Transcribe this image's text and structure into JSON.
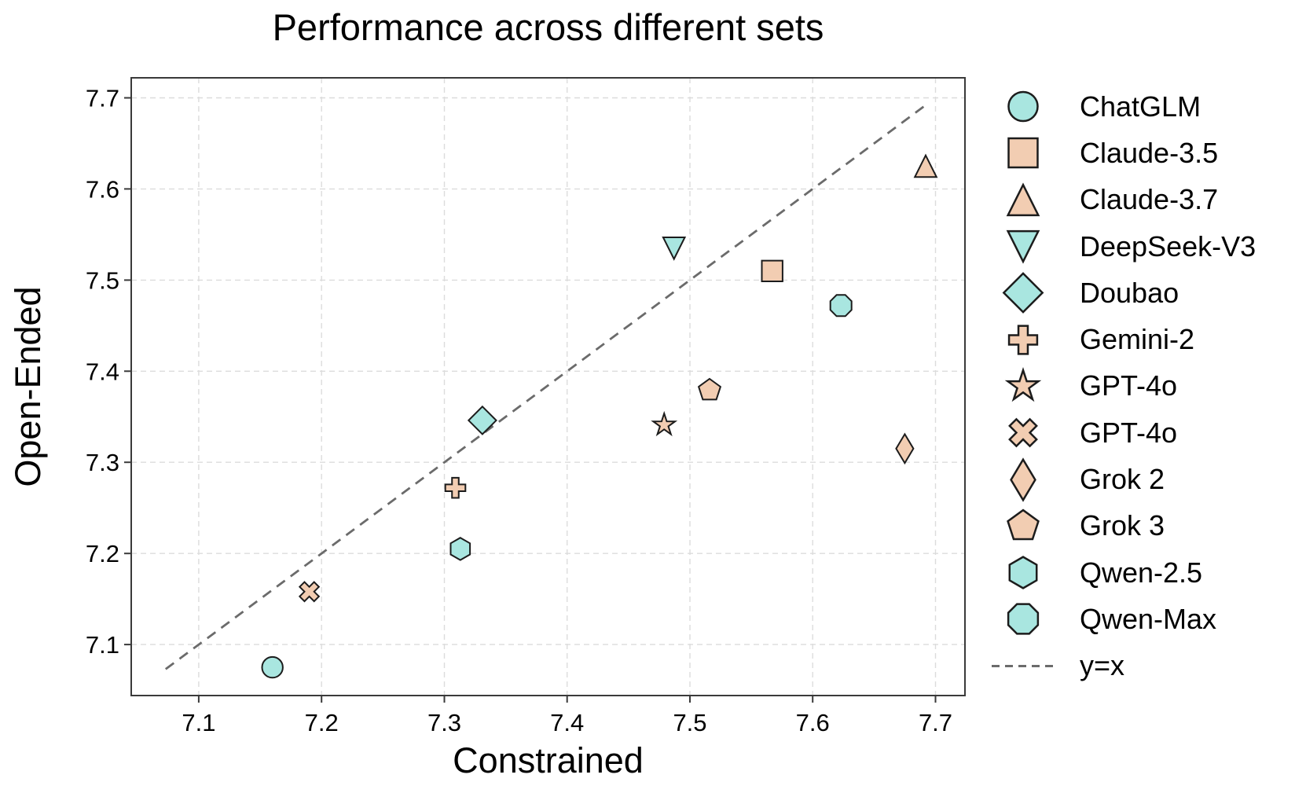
{
  "chart_data": {
    "type": "scatter",
    "title": "Performance across different sets",
    "xlabel": "Constrained",
    "ylabel": "Open-Ended",
    "xlim": [
      7.045,
      7.724
    ],
    "ylim": [
      7.044,
      7.722
    ],
    "xticks": [
      7.1,
      7.2,
      7.3,
      7.4,
      7.5,
      7.6,
      7.7
    ],
    "yticks": [
      7.1,
      7.2,
      7.3,
      7.4,
      7.5,
      7.6,
      7.7
    ],
    "grid": true,
    "legend_position": "right",
    "series": [
      {
        "name": "ChatGLM",
        "marker": "circle",
        "color": "#a9e6e0",
        "x": 7.16,
        "y": 7.075
      },
      {
        "name": "Claude-3.5",
        "marker": "square",
        "color": "#f2cdb2",
        "x": 7.567,
        "y": 7.51
      },
      {
        "name": "Claude-3.7",
        "marker": "triangle-up",
        "color": "#f2cdb2",
        "x": 7.692,
        "y": 7.625
      },
      {
        "name": "DeepSeek-V3",
        "marker": "triangle-down",
        "color": "#a9e6e0",
        "x": 7.487,
        "y": 7.535
      },
      {
        "name": "Doubao",
        "marker": "diamond",
        "color": "#a9e6e0",
        "x": 7.331,
        "y": 7.346
      },
      {
        "name": "Gemini-2",
        "marker": "plus",
        "color": "#f2cdb2",
        "x": 7.309,
        "y": 7.272
      },
      {
        "name": "GPT-4o",
        "marker": "star",
        "color": "#f2cdb2",
        "x": 7.479,
        "y": 7.341
      },
      {
        "name": "GPT-4o",
        "marker": "x",
        "color": "#f2cdb2",
        "x": 7.19,
        "y": 7.158
      },
      {
        "name": "Grok 2",
        "marker": "thin-diamond",
        "color": "#f2cdb2",
        "x": 7.675,
        "y": 7.315
      },
      {
        "name": "Grok 3",
        "marker": "pentagon",
        "color": "#f2cdb2",
        "x": 7.516,
        "y": 7.379
      },
      {
        "name": "Qwen-2.5",
        "marker": "hexagon",
        "color": "#a9e6e0",
        "x": 7.313,
        "y": 7.205
      },
      {
        "name": "Qwen-Max",
        "marker": "octagon",
        "color": "#a9e6e0",
        "x": 7.623,
        "y": 7.472
      }
    ],
    "reference_line": {
      "label": "y=x",
      "start": 7.073,
      "end": 7.693,
      "style": "dashed",
      "color": "#6b6b6b"
    }
  },
  "style": {
    "marker_edge": "#1c1c1c",
    "grid_color": "#dcdcdc",
    "spine_color": "#3a3a3a",
    "tick_color": "#3a3a3a",
    "background": "#ffffff",
    "text_color": "#000000"
  }
}
